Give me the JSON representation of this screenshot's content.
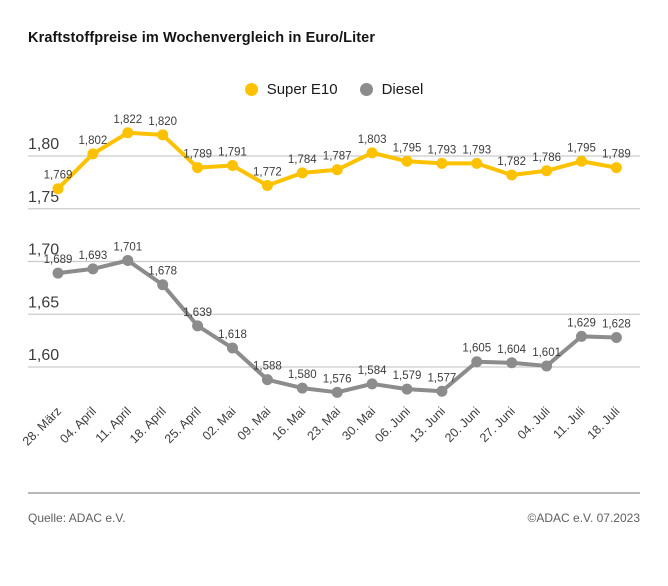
{
  "title": "Kraftstoffpreise im Wochenvergleich in Euro/Liter",
  "legend": [
    {
      "label": "Super E10",
      "color": "#FCC200"
    },
    {
      "label": "Diesel",
      "color": "#8C8C8C"
    }
  ],
  "footer": {
    "source": "Quelle: ADAC e.V.",
    "copyright": "©ADAC e.V. 07.2023"
  },
  "colors": {
    "grid": "#cccccc",
    "axis_text": "#3d3d3d",
    "label_text": "#3d3d3d",
    "separator": "#b8b8b8"
  },
  "chart_data": {
    "type": "line",
    "title": "Kraftstoffpreise im Wochenvergleich in Euro/Liter",
    "xlabel": "",
    "ylabel": "",
    "unit": "Euro/Liter",
    "grid": true,
    "legend_position": "top-center",
    "number_format": "german-comma",
    "categories": [
      "28. März",
      "04. April",
      "11. April",
      "18. April",
      "25. April",
      "02. Mai",
      "09. Mai",
      "16. Mai",
      "23. Mai",
      "30. Mai",
      "06. Juni",
      "13. Juni",
      "20. Juni",
      "27. Juni",
      "04. Juli",
      "11. Juli",
      "18. Juli"
    ],
    "series": [
      {
        "name": "Super E10",
        "color": "#FCC200",
        "values": [
          1.769,
          1.802,
          1.822,
          1.82,
          1.789,
          1.791,
          1.772,
          1.784,
          1.787,
          1.803,
          1.795,
          1.793,
          1.793,
          1.782,
          1.786,
          1.795,
          1.789
        ]
      },
      {
        "name": "Diesel",
        "color": "#8C8C8C",
        "values": [
          1.689,
          1.693,
          1.701,
          1.678,
          1.639,
          1.618,
          1.588,
          1.58,
          1.576,
          1.584,
          1.579,
          1.577,
          1.605,
          1.604,
          1.601,
          1.629,
          1.628
        ]
      }
    ],
    "yticks": [
      1.8,
      1.75,
      1.7,
      1.65,
      1.6
    ],
    "ylim": [
      1.55,
      1.84
    ]
  }
}
